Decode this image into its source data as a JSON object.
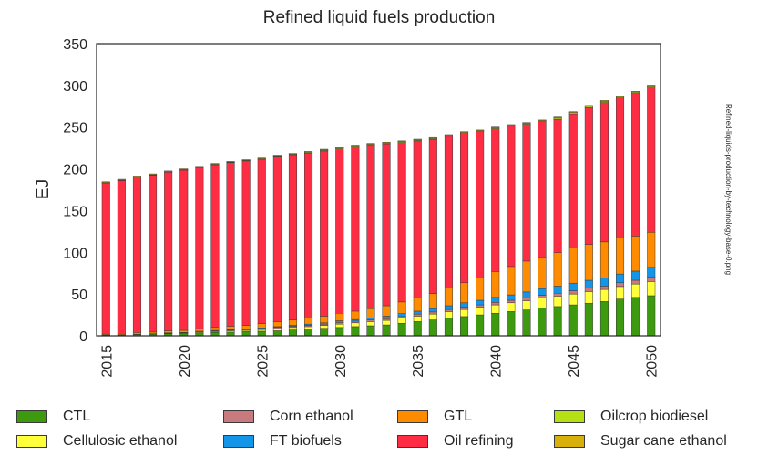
{
  "chart_data": {
    "type": "bar",
    "stacked": true,
    "title": "Refined liquid fuels production",
    "xlabel": "",
    "ylabel": "EJ",
    "ylim": [
      0,
      350
    ],
    "yticks": [
      0,
      50,
      100,
      150,
      200,
      250,
      300,
      350
    ],
    "xticks": [
      "2015",
      "2020",
      "2025",
      "2030",
      "2035",
      "2040",
      "2045",
      "2050"
    ],
    "side_note": "Refined-liquids-production-by-technology-base-0.png",
    "legend_position": "bottom",
    "categories": [
      "2015",
      "2016",
      "2017",
      "2018",
      "2019",
      "2020",
      "2021",
      "2022",
      "2023",
      "2024",
      "2025",
      "2026",
      "2027",
      "2028",
      "2029",
      "2030",
      "2031",
      "2032",
      "2033",
      "2034",
      "2035",
      "2036",
      "2037",
      "2038",
      "2039",
      "2040",
      "2041",
      "2042",
      "2043",
      "2044",
      "2045",
      "2046",
      "2047",
      "2048",
      "2049",
      "2050"
    ],
    "series": [
      {
        "name": "CTL",
        "color": "#3d9a0f",
        "values": [
          0.5,
          1,
          1.5,
          2,
          2.5,
          3,
          3.5,
          4,
          4.5,
          5,
          5.5,
          6,
          7,
          8,
          9,
          10,
          11,
          12,
          13,
          15,
          17,
          19,
          21,
          23,
          25,
          27,
          29,
          31,
          33,
          35,
          37,
          39,
          41,
          44,
          46,
          48
        ]
      },
      {
        "name": "Cellulosic ethanol",
        "color": "#ffff3a",
        "values": [
          0,
          0,
          0,
          0,
          0.5,
          0.5,
          1,
          1,
          1.5,
          1.5,
          2,
          2.5,
          3,
          3,
          3.5,
          4,
          4.5,
          5,
          5.5,
          6,
          6.5,
          7,
          8,
          8.5,
          9,
          10,
          10.5,
          11,
          12,
          12.5,
          13,
          14,
          14.5,
          15,
          16,
          17
        ]
      },
      {
        "name": "Corn ethanol",
        "color": "#c87a7e",
        "values": [
          0.5,
          0.5,
          0.5,
          0.5,
          0.5,
          0.5,
          1,
          1,
          1,
          1,
          1,
          1.5,
          1.5,
          1.5,
          1.5,
          2,
          2,
          2,
          2,
          2,
          2.5,
          2.5,
          2.5,
          3,
          3,
          3,
          3,
          3.5,
          3.5,
          3.5,
          4,
          4,
          4,
          4.5,
          4.5,
          5
        ]
      },
      {
        "name": "FT biofuels",
        "color": "#1496e8",
        "values": [
          0,
          0,
          0,
          0,
          0,
          0,
          0,
          0.5,
          0.5,
          0.5,
          1,
          1,
          1,
          1.5,
          1.5,
          2,
          2,
          2.5,
          3,
          3.5,
          3.5,
          4,
          4.5,
          5,
          5.5,
          6,
          6.5,
          7,
          8,
          8.5,
          9,
          9.5,
          10,
          10.5,
          11,
          12
        ]
      },
      {
        "name": "GTL",
        "color": "#ff8c00",
        "values": [
          1,
          1.5,
          2,
          2,
          2.5,
          2.5,
          3,
          3.5,
          4,
          4.5,
          5,
          6,
          6.5,
          7,
          8,
          9,
          10,
          11,
          12.5,
          14,
          16,
          18,
          21,
          24,
          27,
          31,
          34,
          37,
          38,
          40,
          42,
          43,
          43,
          43,
          42,
          42
        ]
      },
      {
        "name": "Oil refining",
        "color": "#ff2d44",
        "values": [
          181,
          183,
          186,
          188,
          190,
          192,
          193,
          195,
          196,
          197,
          197,
          198,
          198,
          198,
          198,
          197,
          197,
          196,
          194,
          191,
          188,
          185,
          182,
          179,
          175,
          171,
          168,
          164,
          162,
          160,
          161,
          164,
          167,
          168,
          171,
          174
        ]
      },
      {
        "name": "Oilcrop biodiesel",
        "color": "#b5e013",
        "values": [
          0.5,
          0.5,
          0.5,
          0.5,
          0.5,
          0.5,
          0.5,
          0.5,
          0.5,
          0.5,
          0.5,
          0.5,
          0.5,
          1,
          1,
          1,
          1,
          1,
          1,
          1,
          1,
          1,
          1,
          1,
          1,
          1,
          1,
          1,
          1,
          1.5,
          1.5,
          1.5,
          1.5,
          1.5,
          1.5,
          1.5
        ]
      },
      {
        "name": "Sugar cane ethanol",
        "color": "#d8b00c",
        "values": [
          1,
          1,
          1,
          1,
          1,
          1,
          1,
          1,
          1,
          1,
          1,
          1,
          1,
          1,
          1,
          1,
          1,
          1,
          1,
          1,
          1,
          1,
          1,
          1,
          1,
          1,
          1,
          1,
          1,
          1,
          1,
          1,
          1,
          1,
          1,
          1
        ]
      }
    ]
  }
}
